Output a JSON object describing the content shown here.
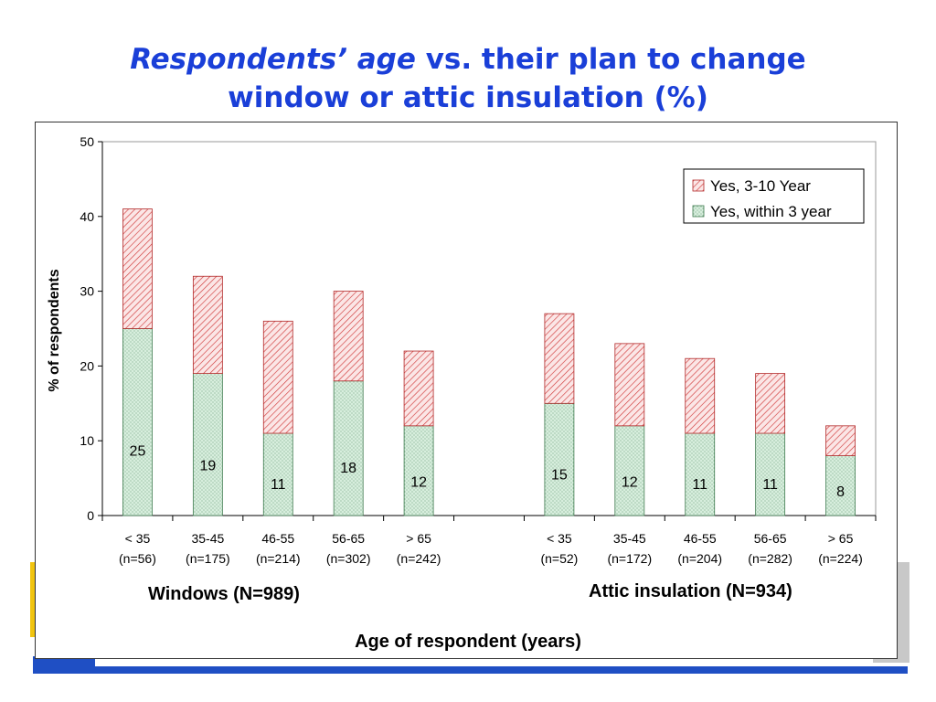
{
  "slide": {
    "title_italic": "Respondents’ age",
    "title_rest": " vs. their plan to change",
    "title_line2": "window or attic insulation (%)"
  },
  "chart_data": {
    "type": "bar",
    "stacked": true,
    "categories": [
      [
        "< 35",
        "(n=56)"
      ],
      [
        "35-45",
        "(n=175)"
      ],
      [
        "46-55",
        "(n=214)"
      ],
      [
        "56-65",
        "(n=302)"
      ],
      [
        "> 65",
        "(n=242)"
      ],
      [
        "< 35",
        "(n=52)"
      ],
      [
        "35-45",
        "(n=172)"
      ],
      [
        "46-55",
        "(n=204)"
      ],
      [
        "56-65",
        "(n=282)"
      ],
      [
        "> 65",
        "(n=224)"
      ]
    ],
    "groups": [
      {
        "label": "Windows (N=989)",
        "category_range": [
          0,
          4
        ]
      },
      {
        "label": "Attic insulation (N=934)",
        "category_range": [
          5,
          9
        ]
      }
    ],
    "series": [
      {
        "name": "Yes, within 3 year",
        "values": [
          25,
          19,
          11,
          18,
          12,
          15,
          12,
          11,
          11,
          8
        ],
        "color": "#d7eedd",
        "pattern": "dots",
        "data_labels": true
      },
      {
        "name": "Yes, 3-10 Year",
        "values": [
          16,
          13,
          15,
          12,
          10,
          12,
          11,
          10,
          8,
          4
        ],
        "color": "#f2c3c3",
        "pattern": "diagonal-hatch",
        "data_labels": false
      }
    ],
    "legend_order": [
      "Yes, 3-10 Year",
      "Yes, within 3 year"
    ],
    "legend_position": "top-right",
    "xlabel": "Age of respondent (years)",
    "ylabel": "% of respondents",
    "ylim": [
      0,
      50
    ],
    "yticks": [
      0,
      10,
      20,
      30,
      40,
      50
    ],
    "grid": false
  }
}
